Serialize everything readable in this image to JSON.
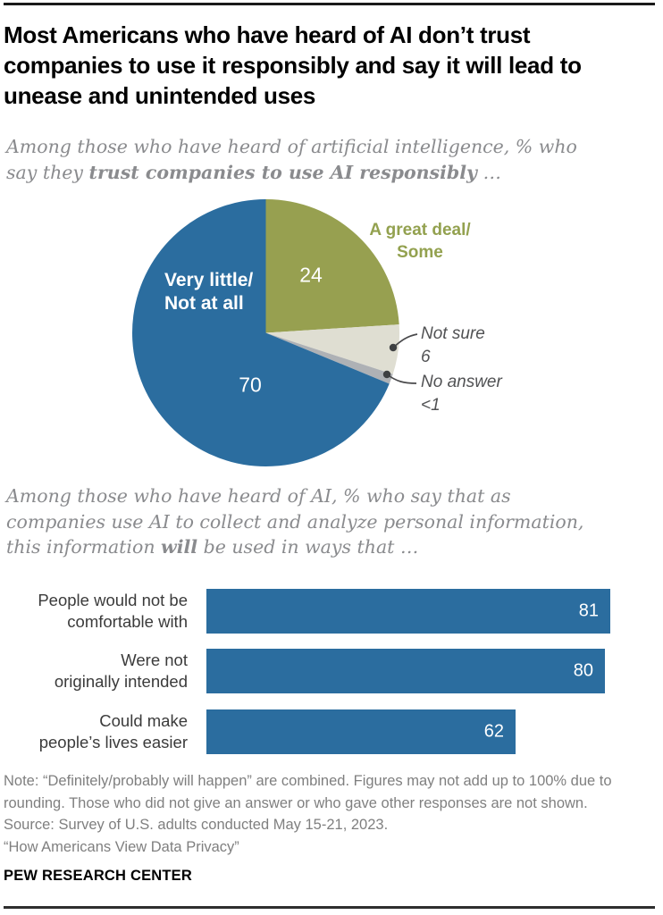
{
  "page": {
    "title": "Most Americans who have heard of AI don’t trust companies to use it responsibly and say it will lead to unease and unintended uses",
    "notes": [
      "Note: “Definitely/probably will happen” are combined. Figures may not add up to 100% due to rounding. Those who did not give an answer or who gave other responses are not shown.",
      "Source: Survey of U.S. adults conducted May 15-21, 2023.",
      "“How Americans View Data Privacy”"
    ],
    "footer": "PEW RESEARCH CENTER"
  },
  "subtitle_pie": {
    "pre": "Among those who have heard of artificial intelligence, % who say they ",
    "bold": "trust companies to use AI responsibly",
    "post": " …"
  },
  "subtitle_bars": {
    "pre": "Among those who have heard of AI, % who say that as companies use AI to collect and analyze personal information, this information ",
    "bold": "will",
    "post": " be used in ways that …"
  },
  "chart_data": [
    {
      "type": "pie",
      "title": "Trust companies to use AI responsibly",
      "start_angle_deg": 0,
      "direction": "clockwise",
      "slices": [
        {
          "label": "A great deal/Some",
          "label_lines": [
            "A great deal/",
            "Some"
          ],
          "value": 24,
          "display": "24",
          "color": "#97a050"
        },
        {
          "label": "Not sure",
          "value": 6,
          "display": "6",
          "color": "#dfded2"
        },
        {
          "label": "No answer",
          "value": 0.5,
          "display": "<1",
          "color": "#aeb1b5"
        },
        {
          "label": "Very little/Not at all",
          "label_lines": [
            "Very little/",
            "Not at all"
          ],
          "value": 70,
          "display": "70",
          "color": "#2b6d9f"
        }
      ]
    },
    {
      "type": "bar",
      "orientation": "horizontal",
      "title": "Ways AI-collected personal information will be used",
      "categories": [
        "People would not be comfortable with",
        "Were not originally intended",
        "Could make people’s lives easier"
      ],
      "label_lines": [
        [
          "People would not be",
          "comfortable with"
        ],
        [
          "Were not",
          "originally intended"
        ],
        [
          "Could make",
          "people’s lives easier"
        ]
      ],
      "values": [
        81,
        80,
        62
      ],
      "xlim": [
        0,
        100
      ],
      "bar_color": "#2b6d9f",
      "value_label_color": "#ffffff"
    }
  ]
}
